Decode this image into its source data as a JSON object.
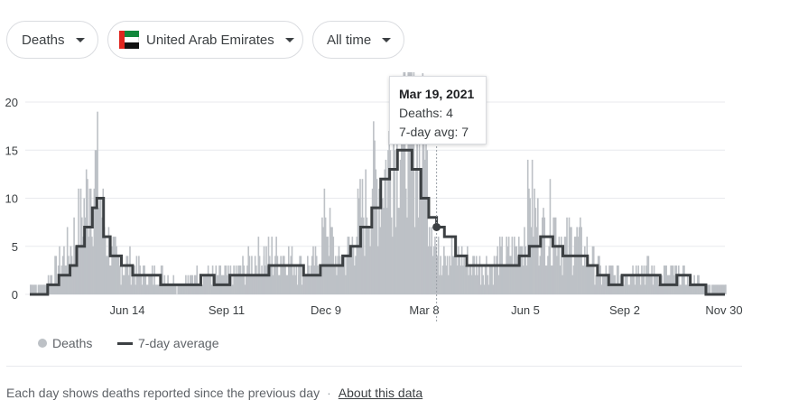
{
  "filters": {
    "metric": "Deaths",
    "country": "United Arab Emirates",
    "range": "All time"
  },
  "tooltip": {
    "date": "Mar 19, 2021",
    "deaths": "Deaths: 4",
    "avg": "7-day avg: 7"
  },
  "legend": {
    "deaths": "Deaths",
    "avg": "7-day average"
  },
  "footer": {
    "note": "Each day shows deaths reported since the previous day",
    "separator": "·",
    "link": "About this data"
  },
  "colors": {
    "bars": "#bdc1c6",
    "average_line": "#3c4043",
    "grid": "#e8eaed"
  },
  "chart_data": {
    "type": "bar",
    "title": "",
    "xlabel": "",
    "ylabel": "",
    "ylim": [
      0,
      20
    ],
    "yticks": [
      0,
      5,
      10,
      15,
      20
    ],
    "x_ticks": [
      "Jun 14",
      "Sep 11",
      "Dec 9",
      "Mar 8",
      "Jun 5",
      "Sep 2",
      "Nov 30"
    ],
    "x_range": [
      "2020-03-20",
      "2021-12-02"
    ],
    "grid": true,
    "highlight": {
      "date": "2021-03-19",
      "deaths": 4,
      "avg": 7
    },
    "series": [
      {
        "name": "Deaths",
        "type": "bar",
        "points": [
          [
            "2020-03-20",
            1
          ],
          [
            "2020-04-01",
            1
          ],
          [
            "2020-04-15",
            3
          ],
          [
            "2020-04-25",
            5
          ],
          [
            "2020-05-05",
            8
          ],
          [
            "2020-05-12",
            11
          ],
          [
            "2020-05-18",
            13
          ],
          [
            "2020-05-25",
            7
          ],
          [
            "2020-06-01",
            4
          ],
          [
            "2020-06-10",
            3
          ],
          [
            "2020-06-20",
            3
          ],
          [
            "2020-07-01",
            2
          ],
          [
            "2020-07-15",
            2
          ],
          [
            "2020-08-01",
            1
          ],
          [
            "2020-08-15",
            2
          ],
          [
            "2020-09-01",
            2
          ],
          [
            "2020-09-15",
            2
          ],
          [
            "2020-10-01",
            3
          ],
          [
            "2020-10-15",
            4
          ],
          [
            "2020-11-01",
            4
          ],
          [
            "2020-11-15",
            3
          ],
          [
            "2020-12-01",
            3
          ],
          [
            "2020-12-09",
            8
          ],
          [
            "2020-12-20",
            3
          ],
          [
            "2021-01-01",
            5
          ],
          [
            "2021-01-10",
            8
          ],
          [
            "2021-01-20",
            11
          ],
          [
            "2021-02-01",
            13
          ],
          [
            "2021-02-08",
            16
          ],
          [
            "2021-02-15",
            18
          ],
          [
            "2021-02-22",
            19
          ],
          [
            "2021-03-01",
            17
          ],
          [
            "2021-03-08",
            14
          ],
          [
            "2021-03-19",
            4
          ],
          [
            "2021-03-25",
            5
          ],
          [
            "2021-04-05",
            4
          ],
          [
            "2021-04-20",
            3
          ],
          [
            "2021-05-05",
            3
          ],
          [
            "2021-05-20",
            4
          ],
          [
            "2021-06-01",
            5
          ],
          [
            "2021-06-10",
            10
          ],
          [
            "2021-06-20",
            6
          ],
          [
            "2021-07-01",
            8
          ],
          [
            "2021-07-10",
            5
          ],
          [
            "2021-07-20",
            6
          ],
          [
            "2021-08-01",
            4
          ],
          [
            "2021-08-15",
            2
          ],
          [
            "2021-09-01",
            2
          ],
          [
            "2021-09-15",
            3
          ],
          [
            "2021-10-01",
            2
          ],
          [
            "2021-10-20",
            2
          ],
          [
            "2021-11-10",
            1
          ],
          [
            "2021-12-02",
            1
          ]
        ]
      },
      {
        "name": "7-day average",
        "type": "step-line",
        "points": [
          [
            "2020-03-20",
            0
          ],
          [
            "2020-04-05",
            1
          ],
          [
            "2020-04-15",
            2
          ],
          [
            "2020-04-25",
            3
          ],
          [
            "2020-05-01",
            5
          ],
          [
            "2020-05-08",
            7
          ],
          [
            "2020-05-15",
            9
          ],
          [
            "2020-05-19",
            10
          ],
          [
            "2020-05-25",
            6
          ],
          [
            "2020-05-31",
            4
          ],
          [
            "2020-06-10",
            3
          ],
          [
            "2020-06-20",
            2
          ],
          [
            "2020-07-01",
            2
          ],
          [
            "2020-07-15",
            1
          ],
          [
            "2020-08-10",
            1
          ],
          [
            "2020-08-20",
            2
          ],
          [
            "2020-09-01",
            1
          ],
          [
            "2020-09-15",
            2
          ],
          [
            "2020-10-01",
            2
          ],
          [
            "2020-10-20",
            3
          ],
          [
            "2020-11-05",
            3
          ],
          [
            "2020-11-20",
            2
          ],
          [
            "2020-12-05",
            3
          ],
          [
            "2020-12-15",
            3
          ],
          [
            "2020-12-25",
            4
          ],
          [
            "2021-01-01",
            5
          ],
          [
            "2021-01-10",
            7
          ],
          [
            "2021-01-20",
            9
          ],
          [
            "2021-01-28",
            12
          ],
          [
            "2021-02-05",
            13
          ],
          [
            "2021-02-12",
            15
          ],
          [
            "2021-02-18",
            15
          ],
          [
            "2021-02-25",
            13
          ],
          [
            "2021-03-05",
            10
          ],
          [
            "2021-03-12",
            8
          ],
          [
            "2021-03-19",
            7
          ],
          [
            "2021-03-26",
            6
          ],
          [
            "2021-04-05",
            4
          ],
          [
            "2021-04-15",
            3
          ],
          [
            "2021-05-01",
            3
          ],
          [
            "2021-05-20",
            3
          ],
          [
            "2021-06-01",
            4
          ],
          [
            "2021-06-10",
            5
          ],
          [
            "2021-06-20",
            6
          ],
          [
            "2021-07-01",
            5
          ],
          [
            "2021-07-10",
            4
          ],
          [
            "2021-07-20",
            4
          ],
          [
            "2021-08-01",
            3
          ],
          [
            "2021-08-10",
            2
          ],
          [
            "2021-08-20",
            1
          ],
          [
            "2021-09-01",
            2
          ],
          [
            "2021-09-20",
            2
          ],
          [
            "2021-10-05",
            1
          ],
          [
            "2021-10-20",
            2
          ],
          [
            "2021-11-01",
            1
          ],
          [
            "2021-11-15",
            0
          ],
          [
            "2021-12-02",
            0
          ]
        ]
      }
    ]
  }
}
